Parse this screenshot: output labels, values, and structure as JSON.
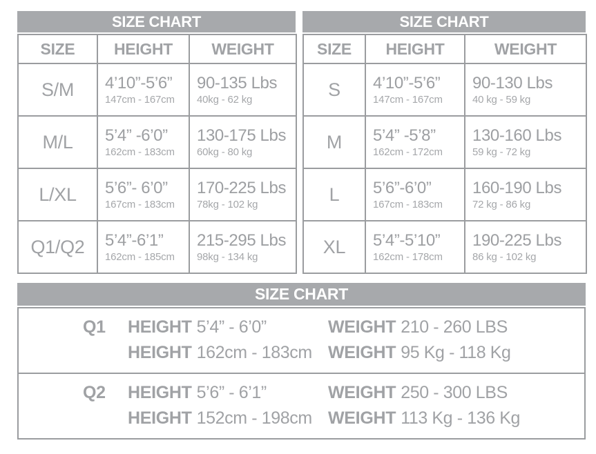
{
  "colors": {
    "header_bar_bg": "#a7a9ac",
    "header_bar_text": "#ffffff",
    "body_text": "#a0a2a5",
    "border": "#9a9c9f",
    "background": "#ffffff"
  },
  "table1": {
    "title": "SIZE CHART",
    "headers": [
      "SIZE",
      "HEIGHT",
      "WEIGHT"
    ],
    "rows": [
      {
        "size": "S/M",
        "height": "4’10”-5’6”",
        "height_cm": "147cm - 167cm",
        "weight": "90-135 Lbs",
        "weight_kg": "40kg - 62 kg"
      },
      {
        "size": "M/L",
        "height": "5’4” -6’0”",
        "height_cm": "162cm - 183cm",
        "weight": "130-175 Lbs",
        "weight_kg": "60kg - 80 kg"
      },
      {
        "size": "L/XL",
        "height": "5’6”- 6’0”",
        "height_cm": "167cm - 183cm",
        "weight": "170-225 Lbs",
        "weight_kg": "78kg - 102 kg"
      },
      {
        "size": "Q1/Q2",
        "height": "5’4”-6’1”",
        "height_cm": "162cm - 185cm",
        "weight": "215-295 Lbs",
        "weight_kg": "98kg - 134 kg"
      }
    ]
  },
  "table2": {
    "title": "SIZE CHART",
    "headers": [
      "SIZE",
      "HEIGHT",
      "WEIGHT"
    ],
    "rows": [
      {
        "size": "S",
        "height": "4’10”-5’6”",
        "height_cm": "147cm - 167cm",
        "weight": "90-130 Lbs",
        "weight_kg": "40 kg - 59 kg"
      },
      {
        "size": "M",
        "height": "5’4” -5’8”",
        "height_cm": "162cm - 172cm",
        "weight": "130-160 Lbs",
        "weight_kg": "59 kg - 72 kg"
      },
      {
        "size": "L",
        "height": "5’6”-6’0”",
        "height_cm": "167cm - 183cm",
        "weight": "160-190 Lbs",
        "weight_kg": "72 kg - 86 kg"
      },
      {
        "size": "XL",
        "height": "5’4”-5’10”",
        "height_cm": "162cm - 178cm",
        "weight": "190-225 Lbs",
        "weight_kg": "86 kg - 102 kg"
      }
    ]
  },
  "table3": {
    "title": "SIZE CHART",
    "height_label": "HEIGHT",
    "weight_label": "WEIGHT",
    "rows": [
      {
        "label": "Q1",
        "height_in": "5’4” - 6’0”",
        "height_cm": "162cm - 183cm",
        "weight_lbs": "210 - 260 LBS",
        "weight_kg": "95 Kg - 118 Kg"
      },
      {
        "label": "Q2",
        "height_in": "5’6” - 6’1”",
        "height_cm": "152cm - 198cm",
        "weight_lbs": "250 - 300 LBS",
        "weight_kg": "113 Kg - 136 Kg"
      }
    ]
  },
  "chart_data": [
    {
      "type": "table",
      "title": "SIZE CHART",
      "columns": [
        "SIZE",
        "HEIGHT",
        "WEIGHT"
      ],
      "rows": [
        [
          "S/M",
          "4’10”-5’6” (147cm - 167cm)",
          "90-135 Lbs (40kg - 62 kg)"
        ],
        [
          "M/L",
          "5’4” -6’0” (162cm - 183cm)",
          "130-175 Lbs (60kg - 80 kg)"
        ],
        [
          "L/XL",
          "5’6”- 6’0” (167cm - 183cm)",
          "170-225 Lbs (78kg - 102 kg)"
        ],
        [
          "Q1/Q2",
          "5’4”-6’1” (162cm - 185cm)",
          "215-295 Lbs (98kg - 134 kg)"
        ]
      ]
    },
    {
      "type": "table",
      "title": "SIZE CHART",
      "columns": [
        "SIZE",
        "HEIGHT",
        "WEIGHT"
      ],
      "rows": [
        [
          "S",
          "4’10”-5’6” (147cm - 167cm)",
          "90-130 Lbs (40 kg - 59 kg)"
        ],
        [
          "M",
          "5’4” -5’8” (162cm - 172cm)",
          "130-160 Lbs (59 kg - 72 kg)"
        ],
        [
          "L",
          "5’6”-6’0” (167cm - 183cm)",
          "160-190 Lbs (72 kg - 86 kg)"
        ],
        [
          "XL",
          "5’4”-5’10” (162cm - 178cm)",
          "190-225 Lbs (86 kg - 102 kg)"
        ]
      ]
    },
    {
      "type": "table",
      "title": "SIZE CHART",
      "columns": [
        "SIZE",
        "HEIGHT",
        "WEIGHT"
      ],
      "rows": [
        [
          "Q1",
          "5’4” - 6’0” (162cm - 183cm)",
          "210 - 260 LBS (95 Kg - 118 Kg)"
        ],
        [
          "Q2",
          "5’6” - 6’1” (152cm - 198cm)",
          "250 - 300 LBS (113 Kg - 136 Kg)"
        ]
      ]
    }
  ]
}
